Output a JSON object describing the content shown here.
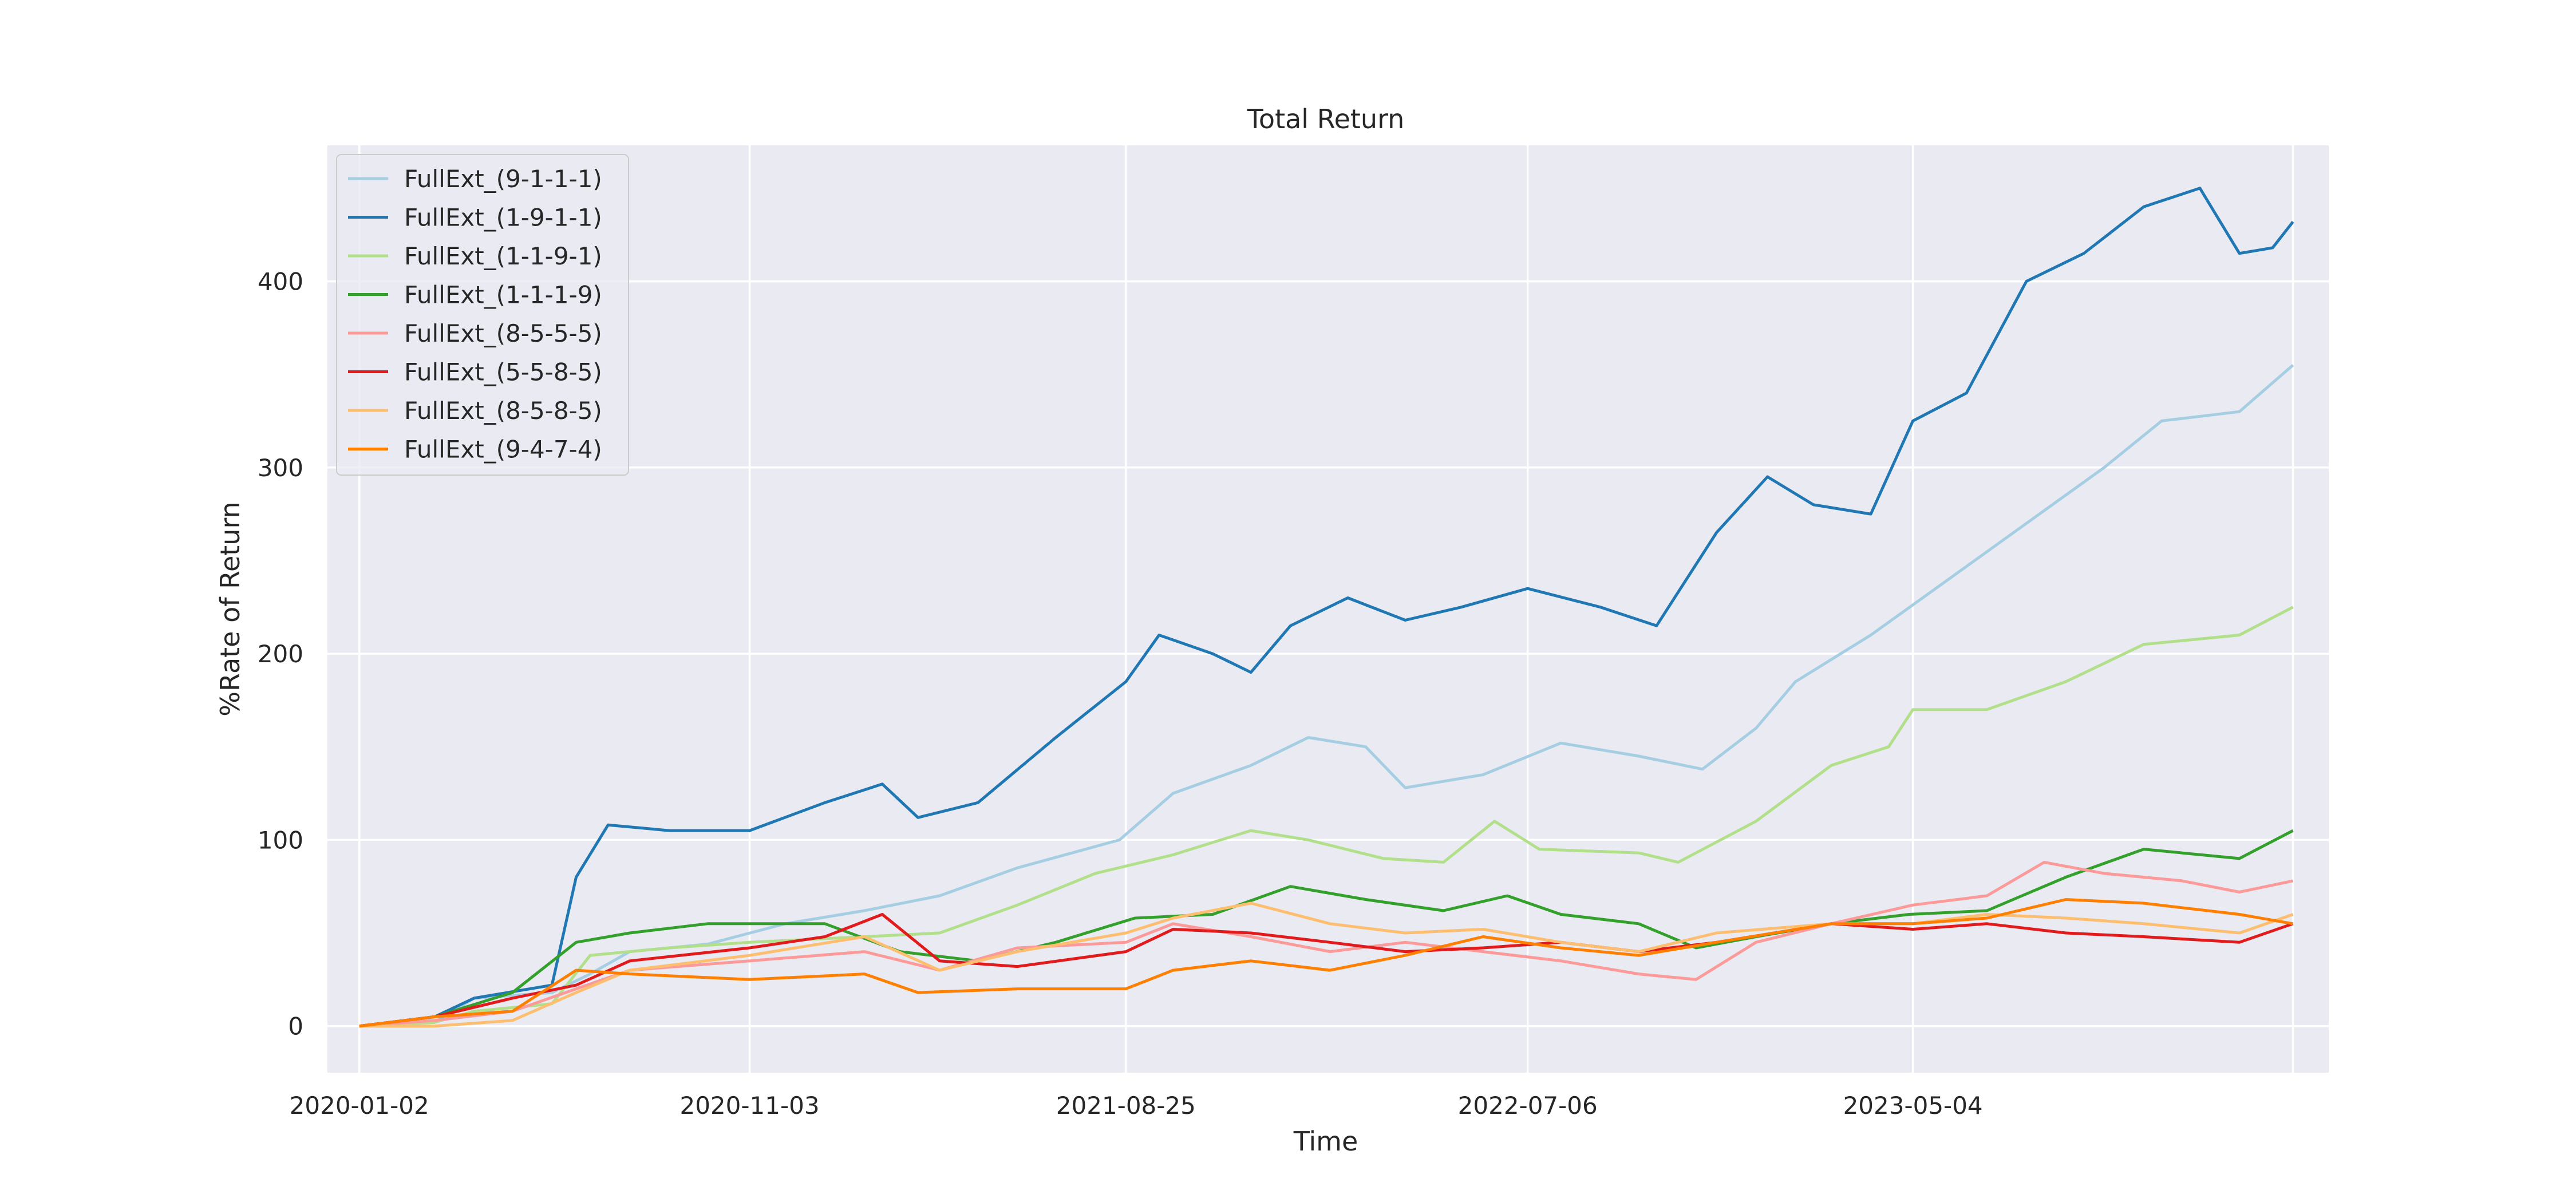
{
  "chart_data": {
    "type": "line",
    "title": "Total Return",
    "xlabel": "Time",
    "ylabel": "%Rate of Return",
    "x_tick_labels": [
      "2020-01-02",
      "2020-11-03",
      "2021-08-25",
      "2022-07-06",
      "2023-05-04"
    ],
    "x_tick_dates": [
      "2020-01-02",
      "2020-11-03",
      "2021-08-25",
      "2022-07-06",
      "2023-05-04",
      "2024-02-26"
    ],
    "xlim": [
      "2019-12-08",
      "2024-03-25"
    ],
    "y_ticks": [
      0,
      100,
      200,
      300,
      400
    ],
    "ylim": [
      -25,
      473
    ],
    "grid": true,
    "legend_position": "top-left",
    "series": [
      {
        "name": "FullExt_(9-1-1-1)",
        "color": "#a6cee3",
        "points": [
          [
            "2020-01-02",
            0
          ],
          [
            "2020-03-01",
            2
          ],
          [
            "2020-04-01",
            15
          ],
          [
            "2020-06-01",
            18
          ],
          [
            "2020-07-01",
            28
          ],
          [
            "2020-08-01",
            40
          ],
          [
            "2020-10-01",
            44
          ],
          [
            "2020-12-01",
            55
          ],
          [
            "2021-02-01",
            62
          ],
          [
            "2021-04-01",
            70
          ],
          [
            "2021-06-01",
            85
          ],
          [
            "2021-08-20",
            100
          ],
          [
            "2021-10-01",
            125
          ],
          [
            "2021-12-01",
            140
          ],
          [
            "2022-01-15",
            155
          ],
          [
            "2022-03-01",
            150
          ],
          [
            "2022-04-01",
            128
          ],
          [
            "2022-06-01",
            135
          ],
          [
            "2022-08-01",
            152
          ],
          [
            "2022-10-01",
            145
          ],
          [
            "2022-11-20",
            138
          ],
          [
            "2023-01-01",
            160
          ],
          [
            "2023-02-01",
            185
          ],
          [
            "2023-04-01",
            210
          ],
          [
            "2023-06-01",
            240
          ],
          [
            "2023-08-01",
            270
          ],
          [
            "2023-10-01",
            300
          ],
          [
            "2023-11-15",
            325
          ],
          [
            "2024-01-15",
            330
          ],
          [
            "2024-02-26",
            355
          ]
        ]
      },
      {
        "name": "FullExt_(1-9-1-1)",
        "color": "#1f78b4",
        "points": [
          [
            "2020-01-02",
            0
          ],
          [
            "2020-03-01",
            5
          ],
          [
            "2020-04-01",
            15
          ],
          [
            "2020-06-01",
            22
          ],
          [
            "2020-06-20",
            80
          ],
          [
            "2020-07-15",
            108
          ],
          [
            "2020-09-01",
            105
          ],
          [
            "2020-11-03",
            105
          ],
          [
            "2021-01-01",
            120
          ],
          [
            "2021-02-15",
            130
          ],
          [
            "2021-03-15",
            112
          ],
          [
            "2021-05-01",
            120
          ],
          [
            "2021-07-01",
            155
          ],
          [
            "2021-08-25",
            185
          ],
          [
            "2021-09-20",
            210
          ],
          [
            "2021-11-01",
            200
          ],
          [
            "2021-12-01",
            190
          ],
          [
            "2022-01-01",
            215
          ],
          [
            "2022-02-15",
            230
          ],
          [
            "2022-04-01",
            218
          ],
          [
            "2022-05-15",
            225
          ],
          [
            "2022-07-06",
            235
          ],
          [
            "2022-09-01",
            225
          ],
          [
            "2022-10-15",
            215
          ],
          [
            "2022-12-01",
            265
          ],
          [
            "2023-01-10",
            295
          ],
          [
            "2023-02-15",
            280
          ],
          [
            "2023-04-01",
            275
          ],
          [
            "2023-05-04",
            325
          ],
          [
            "2023-06-15",
            340
          ],
          [
            "2023-08-01",
            400
          ],
          [
            "2023-09-15",
            415
          ],
          [
            "2023-11-01",
            440
          ],
          [
            "2023-12-15",
            450
          ],
          [
            "2024-01-15",
            415
          ],
          [
            "2024-02-10",
            418
          ],
          [
            "2024-02-26",
            432
          ]
        ]
      },
      {
        "name": "FullExt_(1-1-9-1)",
        "color": "#b2df8a",
        "points": [
          [
            "2020-01-02",
            0
          ],
          [
            "2020-03-01",
            2
          ],
          [
            "2020-04-01",
            8
          ],
          [
            "2020-06-01",
            12
          ],
          [
            "2020-07-01",
            38
          ],
          [
            "2020-09-01",
            42
          ],
          [
            "2020-11-03",
            45
          ],
          [
            "2021-02-01",
            48
          ],
          [
            "2021-04-01",
            50
          ],
          [
            "2021-06-01",
            65
          ],
          [
            "2021-08-01",
            82
          ],
          [
            "2021-10-01",
            92
          ],
          [
            "2021-12-01",
            105
          ],
          [
            "2022-01-15",
            100
          ],
          [
            "2022-03-15",
            90
          ],
          [
            "2022-05-01",
            88
          ],
          [
            "2022-06-10",
            110
          ],
          [
            "2022-07-15",
            95
          ],
          [
            "2022-10-01",
            93
          ],
          [
            "2022-11-01",
            88
          ],
          [
            "2023-01-01",
            110
          ],
          [
            "2023-03-01",
            140
          ],
          [
            "2023-04-15",
            150
          ],
          [
            "2023-05-04",
            170
          ],
          [
            "2023-07-01",
            170
          ],
          [
            "2023-09-01",
            185
          ],
          [
            "2023-11-01",
            205
          ],
          [
            "2024-01-15",
            210
          ],
          [
            "2024-02-26",
            225
          ]
        ]
      },
      {
        "name": "FullExt_(1-1-1-9)",
        "color": "#33a02c",
        "points": [
          [
            "2020-01-02",
            0
          ],
          [
            "2020-03-01",
            5
          ],
          [
            "2020-05-01",
            18
          ],
          [
            "2020-06-20",
            45
          ],
          [
            "2020-08-01",
            50
          ],
          [
            "2020-10-01",
            55
          ],
          [
            "2021-01-01",
            55
          ],
          [
            "2021-03-01",
            40
          ],
          [
            "2021-05-01",
            35
          ],
          [
            "2021-07-01",
            45
          ],
          [
            "2021-09-01",
            58
          ],
          [
            "2021-11-01",
            60
          ],
          [
            "2022-01-01",
            75
          ],
          [
            "2022-03-01",
            68
          ],
          [
            "2022-05-01",
            62
          ],
          [
            "2022-06-20",
            70
          ],
          [
            "2022-08-01",
            60
          ],
          [
            "2022-10-01",
            55
          ],
          [
            "2022-11-15",
            42
          ],
          [
            "2023-01-01",
            48
          ],
          [
            "2023-03-01",
            55
          ],
          [
            "2023-05-01",
            60
          ],
          [
            "2023-07-01",
            62
          ],
          [
            "2023-09-01",
            80
          ],
          [
            "2023-11-01",
            95
          ],
          [
            "2024-01-15",
            90
          ],
          [
            "2024-02-26",
            105
          ]
        ]
      },
      {
        "name": "FullExt_(8-5-5-5)",
        "color": "#fb9a99",
        "points": [
          [
            "2020-01-02",
            0
          ],
          [
            "2020-03-01",
            3
          ],
          [
            "2020-05-01",
            8
          ],
          [
            "2020-06-20",
            20
          ],
          [
            "2020-08-01",
            30
          ],
          [
            "2020-11-03",
            35
          ],
          [
            "2021-02-01",
            40
          ],
          [
            "2021-04-01",
            30
          ],
          [
            "2021-06-01",
            42
          ],
          [
            "2021-08-25",
            45
          ],
          [
            "2021-10-01",
            55
          ],
          [
            "2021-12-01",
            48
          ],
          [
            "2022-02-01",
            40
          ],
          [
            "2022-04-01",
            45
          ],
          [
            "2022-06-01",
            40
          ],
          [
            "2022-08-01",
            35
          ],
          [
            "2022-10-01",
            28
          ],
          [
            "2022-11-15",
            25
          ],
          [
            "2023-01-01",
            45
          ],
          [
            "2023-03-01",
            55
          ],
          [
            "2023-05-04",
            65
          ],
          [
            "2023-07-01",
            70
          ],
          [
            "2023-08-15",
            88
          ],
          [
            "2023-10-01",
            82
          ],
          [
            "2023-12-01",
            78
          ],
          [
            "2024-01-15",
            72
          ],
          [
            "2024-02-26",
            78
          ]
        ]
      },
      {
        "name": "FullExt_(5-5-8-5)",
        "color": "#e31a1c",
        "points": [
          [
            "2020-01-02",
            0
          ],
          [
            "2020-03-01",
            5
          ],
          [
            "2020-05-01",
            15
          ],
          [
            "2020-06-20",
            22
          ],
          [
            "2020-08-01",
            35
          ],
          [
            "2020-11-03",
            42
          ],
          [
            "2021-01-01",
            48
          ],
          [
            "2021-02-15",
            60
          ],
          [
            "2021-04-01",
            35
          ],
          [
            "2021-06-01",
            32
          ],
          [
            "2021-08-25",
            40
          ],
          [
            "2021-10-01",
            52
          ],
          [
            "2021-12-01",
            50
          ],
          [
            "2022-02-01",
            45
          ],
          [
            "2022-04-01",
            40
          ],
          [
            "2022-06-01",
            42
          ],
          [
            "2022-08-01",
            45
          ],
          [
            "2022-10-01",
            40
          ],
          [
            "2022-12-01",
            45
          ],
          [
            "2023-03-01",
            55
          ],
          [
            "2023-05-04",
            52
          ],
          [
            "2023-07-01",
            55
          ],
          [
            "2023-09-01",
            50
          ],
          [
            "2023-11-01",
            48
          ],
          [
            "2024-01-15",
            45
          ],
          [
            "2024-02-26",
            55
          ]
        ]
      },
      {
        "name": "FullExt_(8-5-8-5)",
        "color": "#fdbf6f",
        "points": [
          [
            "2020-01-02",
            0
          ],
          [
            "2020-03-01",
            0
          ],
          [
            "2020-05-01",
            3
          ],
          [
            "2020-06-20",
            18
          ],
          [
            "2020-08-01",
            30
          ],
          [
            "2020-11-03",
            38
          ],
          [
            "2021-02-01",
            48
          ],
          [
            "2021-04-01",
            30
          ],
          [
            "2021-06-01",
            40
          ],
          [
            "2021-08-25",
            50
          ],
          [
            "2021-10-01",
            58
          ],
          [
            "2021-12-01",
            66
          ],
          [
            "2022-02-01",
            55
          ],
          [
            "2022-04-01",
            50
          ],
          [
            "2022-06-01",
            52
          ],
          [
            "2022-08-01",
            45
          ],
          [
            "2022-10-01",
            40
          ],
          [
            "2022-12-01",
            50
          ],
          [
            "2023-03-01",
            55
          ],
          [
            "2023-05-04",
            55
          ],
          [
            "2023-07-01",
            60
          ],
          [
            "2023-09-01",
            58
          ],
          [
            "2023-11-01",
            55
          ],
          [
            "2024-01-15",
            50
          ],
          [
            "2024-02-26",
            60
          ]
        ]
      },
      {
        "name": "FullExt_(9-4-7-4)",
        "color": "#ff7f00",
        "points": [
          [
            "2020-01-02",
            0
          ],
          [
            "2020-03-01",
            5
          ],
          [
            "2020-05-01",
            8
          ],
          [
            "2020-06-20",
            30
          ],
          [
            "2020-08-01",
            28
          ],
          [
            "2020-11-03",
            25
          ],
          [
            "2021-02-01",
            28
          ],
          [
            "2021-03-15",
            18
          ],
          [
            "2021-06-01",
            20
          ],
          [
            "2021-08-25",
            20
          ],
          [
            "2021-10-01",
            30
          ],
          [
            "2021-12-01",
            35
          ],
          [
            "2022-02-01",
            30
          ],
          [
            "2022-04-01",
            38
          ],
          [
            "2022-06-01",
            48
          ],
          [
            "2022-08-01",
            42
          ],
          [
            "2022-10-01",
            38
          ],
          [
            "2022-12-01",
            45
          ],
          [
            "2023-03-01",
            55
          ],
          [
            "2023-05-04",
            55
          ],
          [
            "2023-07-01",
            58
          ],
          [
            "2023-09-01",
            68
          ],
          [
            "2023-11-01",
            66
          ],
          [
            "2024-01-15",
            60
          ],
          [
            "2024-02-26",
            55
          ]
        ]
      }
    ]
  }
}
